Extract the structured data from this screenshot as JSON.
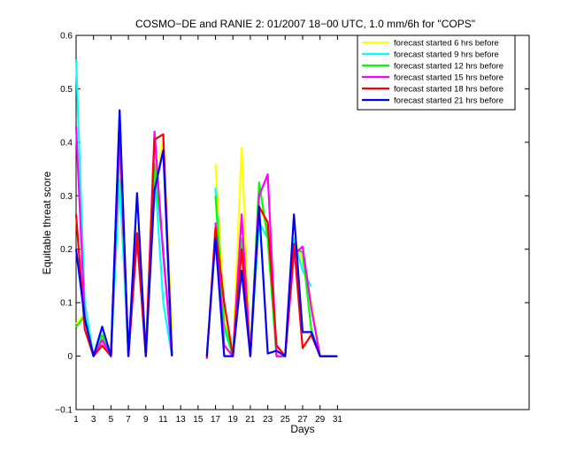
{
  "chart_data": {
    "type": "line",
    "title": "COSMO−DE and RANIE 2: 01/2007 18−00 UTC, 1.0 mm/6h for \"COPS\"",
    "xlabel": "Days",
    "ylabel": "Equitable threat score",
    "xlim": [
      1,
      53
    ],
    "ylim": [
      -0.1,
      0.6
    ],
    "xticks": [
      1,
      3,
      5,
      7,
      9,
      11,
      13,
      15,
      17,
      19,
      21,
      23,
      25,
      27,
      29,
      31
    ],
    "xtick_labels": [
      "1",
      "3",
      "5",
      "7",
      "9",
      "11",
      "13",
      "15",
      "17",
      "19",
      "21",
      "23",
      "25",
      "27",
      "29",
      "31"
    ],
    "yticks": [
      -0.1,
      0,
      0.1,
      0.2,
      0.3,
      0.4,
      0.5,
      0.6
    ],
    "ytick_labels": [
      "−0.1",
      "0",
      "0.1",
      "0.2",
      "0.3",
      "0.4",
      "0.5",
      "0.6"
    ],
    "grid": false,
    "legend_position": "top-right",
    "x": [
      1,
      2,
      3,
      4,
      5,
      6,
      7,
      8,
      9,
      10,
      11,
      12,
      13,
      14,
      15,
      16,
      17,
      18,
      19,
      20,
      21,
      22,
      23,
      24,
      25,
      26,
      27,
      28,
      29,
      30,
      31
    ],
    "series": [
      {
        "name": "forecast started 6 hrs before",
        "color": "#ffff00",
        "values": [
          0.06,
          0.08,
          0.0,
          0.035,
          0.0,
          0.35,
          0.0,
          0.24,
          0.0,
          0.3,
          0.41,
          0.05,
          null,
          null,
          null,
          null,
          0.36,
          0.09,
          0.0,
          0.39,
          0.0,
          0.28,
          0.24,
          0.0,
          0.0,
          0.22,
          0.18,
          0.1,
          0.0,
          0.0,
          0.0
        ]
      },
      {
        "name": "forecast started 9 hrs before",
        "color": "#00ffff",
        "values": [
          0.555,
          0.1,
          0.0,
          0.02,
          0.0,
          0.33,
          0.0,
          0.22,
          0.0,
          0.35,
          0.1,
          0.0,
          null,
          null,
          null,
          null,
          0.315,
          0.05,
          0.0,
          0.2,
          0.0,
          0.25,
          0.22,
          0.0,
          0.0,
          0.22,
          0.16,
          0.13,
          null,
          null,
          null
        ]
      },
      {
        "name": "forecast started 12 hrs before",
        "color": "#00ff00",
        "values": [
          0.055,
          0.075,
          0.0,
          0.04,
          0.0,
          0.4,
          0.0,
          0.22,
          0.0,
          0.36,
          0.2,
          0.0,
          null,
          null,
          null,
          null,
          0.3,
          0.06,
          0.0,
          0.22,
          0.0,
          0.325,
          0.22,
          0.0,
          0.0,
          0.2,
          0.195,
          0.05,
          0.0,
          0.0,
          0.0
        ]
      },
      {
        "name": "forecast started 15 hrs before",
        "color": "#ff00ff",
        "values": [
          0.43,
          0.07,
          0.0,
          0.03,
          0.0,
          0.42,
          0.0,
          0.22,
          0.0,
          0.42,
          0.19,
          0.0,
          null,
          null,
          null,
          null,
          0.25,
          0.02,
          0.0,
          0.265,
          0.0,
          0.3,
          0.34,
          0.0,
          0.0,
          0.19,
          0.205,
          0.09,
          0.0,
          0.0,
          0.0
        ]
      },
      {
        "name": "forecast started 18 hrs before",
        "color": "#ff0000",
        "values": [
          0.265,
          0.05,
          0.0,
          0.02,
          0.0,
          0.45,
          0.0,
          0.23,
          0.0,
          0.405,
          0.415,
          0.0,
          null,
          null,
          null,
          -0.005,
          0.24,
          0.1,
          0.0,
          0.2,
          0.0,
          0.28,
          0.25,
          0.02,
          0.0,
          0.21,
          0.015,
          0.04,
          0.0,
          0.0,
          0.0
        ]
      },
      {
        "name": "forecast started 21 hrs before",
        "color": "#0000ff",
        "values": [
          0.2,
          0.07,
          0.0,
          0.055,
          0.0,
          0.46,
          0.0,
          0.305,
          0.0,
          0.31,
          0.385,
          0.0,
          null,
          null,
          null,
          0.0,
          0.22,
          0.0,
          0.0,
          0.16,
          0.0,
          0.28,
          0.005,
          0.01,
          0.0,
          0.265,
          0.045,
          0.045,
          0.0,
          0.0,
          0.0
        ]
      }
    ]
  }
}
